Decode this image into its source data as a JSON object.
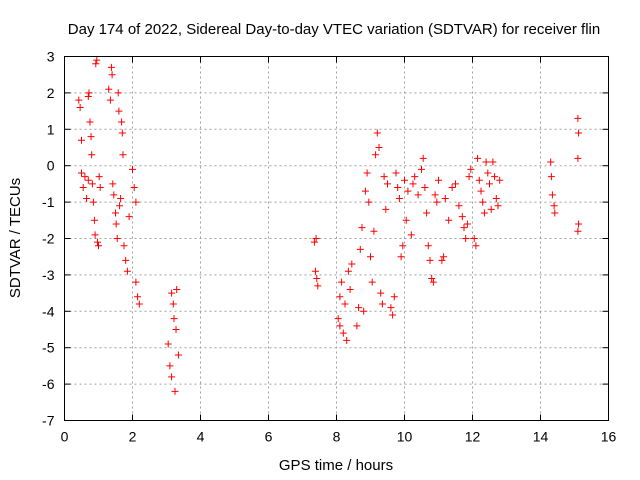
{
  "chart_data": {
    "type": "scatter",
    "title": "Day 174 of 2022, Sidereal Day-to-day VTEC variation (SDTVAR) for receiver flin",
    "xlabel": "GPS time / hours",
    "ylabel": "SDTVAR / TECUs",
    "xlim": [
      0,
      16
    ],
    "ylim": [
      -7,
      3
    ],
    "xticks": [
      "0",
      "2",
      "4",
      "6",
      "8",
      "10",
      "12",
      "14",
      "16"
    ],
    "yticks": [
      "3",
      "2",
      "1",
      "0",
      "-1",
      "-2",
      "-3",
      "-4",
      "-5",
      "-6",
      "-7"
    ],
    "grid": true,
    "marker": "+",
    "color": "#ff0000",
    "series": [
      {
        "name": "SDTVAR",
        "points": [
          [
            0.42,
            1.8
          ],
          [
            0.46,
            1.6
          ],
          [
            0.5,
            0.7
          ],
          [
            0.5,
            -0.2
          ],
          [
            0.55,
            -0.6
          ],
          [
            0.6,
            -0.3
          ],
          [
            0.65,
            -0.9
          ],
          [
            0.7,
            -0.4
          ],
          [
            0.7,
            1.9
          ],
          [
            0.72,
            2.0
          ],
          [
            0.75,
            1.2
          ],
          [
            0.78,
            0.8
          ],
          [
            0.8,
            0.3
          ],
          [
            0.82,
            -0.5
          ],
          [
            0.85,
            -1.0
          ],
          [
            0.88,
            -1.5
          ],
          [
            0.9,
            -1.9
          ],
          [
            0.92,
            2.8
          ],
          [
            0.95,
            2.9
          ],
          [
            0.97,
            -2.1
          ],
          [
            1.0,
            -2.2
          ],
          [
            1.02,
            -0.3
          ],
          [
            1.05,
            -0.6
          ],
          [
            1.3,
            2.1
          ],
          [
            1.35,
            1.8
          ],
          [
            1.38,
            2.7
          ],
          [
            1.4,
            2.5
          ],
          [
            1.42,
            -0.5
          ],
          [
            1.45,
            -0.8
          ],
          [
            1.5,
            -1.3
          ],
          [
            1.52,
            -1.6
          ],
          [
            1.55,
            -2.0
          ],
          [
            1.58,
            2.0
          ],
          [
            1.6,
            1.5
          ],
          [
            1.62,
            -1.1
          ],
          [
            1.65,
            -0.9
          ],
          [
            1.68,
            1.2
          ],
          [
            1.7,
            0.9
          ],
          [
            1.72,
            0.3
          ],
          [
            1.75,
            -2.2
          ],
          [
            1.8,
            -2.6
          ],
          [
            1.85,
            -2.9
          ],
          [
            1.9,
            -1.4
          ],
          [
            2.0,
            -0.1
          ],
          [
            2.05,
            -0.6
          ],
          [
            2.1,
            -1.0
          ],
          [
            2.1,
            -3.2
          ],
          [
            2.15,
            -3.6
          ],
          [
            2.2,
            -3.8
          ],
          [
            3.05,
            -4.9
          ],
          [
            3.1,
            -5.5
          ],
          [
            3.15,
            -5.8
          ],
          [
            3.15,
            -3.5
          ],
          [
            3.2,
            -3.8
          ],
          [
            3.22,
            -4.2
          ],
          [
            3.25,
            -6.2
          ],
          [
            3.28,
            -4.5
          ],
          [
            3.3,
            -3.4
          ],
          [
            3.35,
            -5.2
          ],
          [
            7.35,
            -2.1
          ],
          [
            7.4,
            -2.0
          ],
          [
            7.38,
            -2.9
          ],
          [
            7.42,
            -3.1
          ],
          [
            7.45,
            -3.3
          ],
          [
            8.05,
            -4.2
          ],
          [
            8.1,
            -4.4
          ],
          [
            8.1,
            -3.6
          ],
          [
            8.15,
            -3.2
          ],
          [
            8.2,
            -4.6
          ],
          [
            8.25,
            -3.8
          ],
          [
            8.3,
            -4.8
          ],
          [
            8.35,
            -2.9
          ],
          [
            8.4,
            -3.4
          ],
          [
            8.45,
            -2.7
          ],
          [
            8.6,
            -4.4
          ],
          [
            8.65,
            -3.9
          ],
          [
            8.7,
            -2.3
          ],
          [
            8.75,
            -1.7
          ],
          [
            8.8,
            -4.0
          ],
          [
            8.85,
            -0.7
          ],
          [
            8.9,
            -0.2
          ],
          [
            8.95,
            -1.0
          ],
          [
            9.0,
            -2.5
          ],
          [
            9.05,
            -3.2
          ],
          [
            9.1,
            -1.8
          ],
          [
            9.15,
            0.3
          ],
          [
            9.2,
            0.9
          ],
          [
            9.25,
            0.5
          ],
          [
            9.3,
            -3.5
          ],
          [
            9.35,
            -3.8
          ],
          [
            9.4,
            -0.3
          ],
          [
            9.45,
            -1.2
          ],
          [
            9.5,
            -0.5
          ],
          [
            9.6,
            -3.9
          ],
          [
            9.65,
            -4.1
          ],
          [
            9.7,
            -3.6
          ],
          [
            9.75,
            -0.2
          ],
          [
            9.8,
            -0.6
          ],
          [
            9.85,
            -0.9
          ],
          [
            9.9,
            -2.5
          ],
          [
            9.95,
            -2.2
          ],
          [
            10.0,
            -0.4
          ],
          [
            10.05,
            -1.5
          ],
          [
            10.1,
            -0.7
          ],
          [
            10.2,
            -1.9
          ],
          [
            10.25,
            -0.5
          ],
          [
            10.3,
            -0.3
          ],
          [
            10.4,
            -0.8
          ],
          [
            10.5,
            -0.1
          ],
          [
            10.55,
            0.2
          ],
          [
            10.6,
            -0.6
          ],
          [
            10.65,
            -1.3
          ],
          [
            10.7,
            -2.2
          ],
          [
            10.75,
            -2.6
          ],
          [
            10.8,
            -3.1
          ],
          [
            10.85,
            -3.2
          ],
          [
            10.9,
            -0.8
          ],
          [
            10.95,
            -1.0
          ],
          [
            11.0,
            -0.4
          ],
          [
            11.1,
            -2.6
          ],
          [
            11.15,
            -2.5
          ],
          [
            11.2,
            -0.9
          ],
          [
            11.3,
            -1.5
          ],
          [
            11.4,
            -0.6
          ],
          [
            11.5,
            -0.5
          ],
          [
            11.6,
            -1.1
          ],
          [
            11.7,
            -1.4
          ],
          [
            11.75,
            -1.7
          ],
          [
            11.8,
            -2.0
          ],
          [
            11.85,
            -1.6
          ],
          [
            11.9,
            -0.3
          ],
          [
            11.95,
            -0.1
          ],
          [
            12.05,
            -2.0
          ],
          [
            12.1,
            -2.2
          ],
          [
            12.15,
            0.2
          ],
          [
            12.2,
            -0.4
          ],
          [
            12.25,
            -0.7
          ],
          [
            12.3,
            -1.0
          ],
          [
            12.35,
            -1.3
          ],
          [
            12.4,
            0.1
          ],
          [
            12.45,
            -0.2
          ],
          [
            12.5,
            -0.5
          ],
          [
            12.55,
            -1.2
          ],
          [
            12.6,
            0.1
          ],
          [
            12.65,
            -0.3
          ],
          [
            12.7,
            -0.9
          ],
          [
            12.75,
            -1.1
          ],
          [
            12.8,
            -0.4
          ],
          [
            14.3,
            0.1
          ],
          [
            14.32,
            -0.3
          ],
          [
            14.35,
            -0.8
          ],
          [
            14.4,
            -1.1
          ],
          [
            14.42,
            -1.3
          ],
          [
            15.1,
            1.3
          ],
          [
            15.12,
            0.9
          ],
          [
            15.1,
            0.2
          ],
          [
            15.12,
            -1.6
          ],
          [
            15.1,
            -1.8
          ]
        ]
      }
    ]
  }
}
